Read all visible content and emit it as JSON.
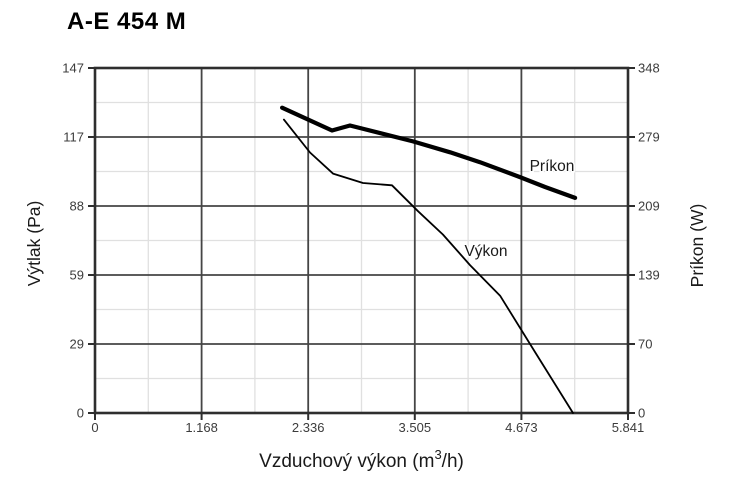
{
  "chart_data": {
    "type": "line",
    "title": "A-E 454 M",
    "x_axis": {
      "title_parts": {
        "pre": "Vzduchový výkon (m",
        "sup": "3",
        "post": "/h)"
      },
      "min": 0,
      "max": 5841,
      "tick_labels": [
        "0",
        "1.168",
        "2.336",
        "3.505",
        "4.673",
        "5.841"
      ]
    },
    "y_axis_left": {
      "title": "Výtlak (Pa)",
      "min": 0,
      "max": 147,
      "tick_labels": [
        "0",
        "29",
        "59",
        "88",
        "117",
        "147"
      ]
    },
    "y_axis_right": {
      "title": "Príkon (W)",
      "min": 0,
      "max": 348,
      "tick_labels": [
        "0",
        "70",
        "139",
        "209",
        "279",
        "348"
      ]
    },
    "grid": {
      "major": true,
      "minor": true
    },
    "legend": "inline-labels",
    "series": [
      {
        "name": "Príkon",
        "axis": "right",
        "line_width": "thick",
        "color": "#000000",
        "points": [
          [
            2050,
            308
          ],
          [
            2597,
            285
          ],
          [
            2795,
            290
          ],
          [
            3485,
            274
          ],
          [
            3891,
            263
          ],
          [
            4219,
            253
          ],
          [
            4658,
            238
          ],
          [
            4932,
            228
          ],
          [
            5261,
            217
          ]
        ]
      },
      {
        "name": "Výkon",
        "axis": "left",
        "line_width": "thin",
        "color": "#000000",
        "points": [
          [
            2070,
            125
          ],
          [
            2356,
            111
          ],
          [
            2608,
            102
          ],
          [
            2937,
            98
          ],
          [
            3255,
            97
          ],
          [
            3540,
            86
          ],
          [
            3814,
            76
          ],
          [
            4110,
            63
          ],
          [
            4439,
            50
          ],
          [
            4822,
            26
          ],
          [
            5238,
            0
          ]
        ]
      }
    ],
    "annotations": [
      {
        "text": "Príkon",
        "x": 5008,
        "y": 249,
        "axis": "right"
      },
      {
        "text": "Výkon",
        "x": 4285,
        "y": 69,
        "axis": "left"
      }
    ],
    "colors": {
      "axis_frame": "#2e2e2e",
      "grid_major": "#454545",
      "grid_minor": "#e0e0e0",
      "text": "#1a1a1a",
      "tick_text": "#3c3c3c",
      "line": "#000000"
    }
  }
}
